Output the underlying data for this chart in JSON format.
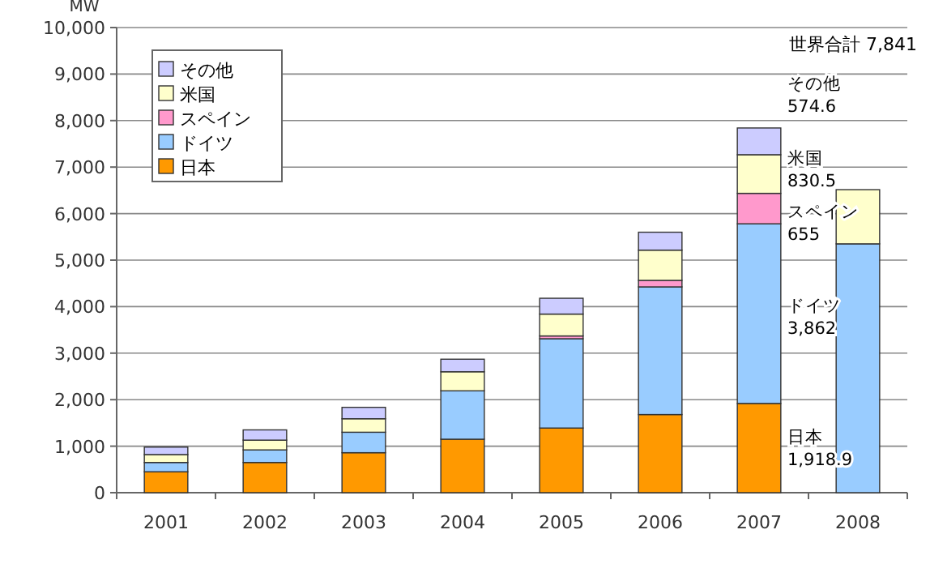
{
  "chart_data": {
    "type": "bar",
    "stacked": true,
    "ylabel": "MW",
    "categories": [
      "2001",
      "2002",
      "2003",
      "2004",
      "2005",
      "2006",
      "2007",
      "2008"
    ],
    "series": [
      {
        "name": "日本",
        "color": "#ff9900",
        "values": [
          450,
          650,
          860,
          1150,
          1390,
          1680,
          1918.9,
          null
        ]
      },
      {
        "name": "ドイツ",
        "color": "#99ccff",
        "values": [
          200,
          270,
          440,
          1040,
          1920,
          2745,
          3862,
          5350
        ]
      },
      {
        "name": "スペイン",
        "color": "#ff99cc",
        "values": [
          null,
          null,
          null,
          null,
          60,
          140,
          655,
          null
        ]
      },
      {
        "name": "米国",
        "color": "#ffffcc",
        "values": [
          170,
          210,
          290,
          410,
          470,
          650,
          830.5,
          1165
        ]
      },
      {
        "name": "その他",
        "color": "#ccccff",
        "values": [
          160,
          220,
          245,
          270,
          340,
          385,
          574.6,
          null
        ]
      }
    ],
    "ylim": [
      0,
      10000
    ],
    "yticks": [
      {
        "value": 0,
        "label": "0"
      },
      {
        "value": 1000,
        "label": "1,000"
      },
      {
        "value": 2000,
        "label": "2,000"
      },
      {
        "value": 3000,
        "label": "3,000"
      },
      {
        "value": 4000,
        "label": "4,000"
      },
      {
        "value": 5000,
        "label": "5,000"
      },
      {
        "value": 6000,
        "label": "6,000"
      },
      {
        "value": 7000,
        "label": "7,000"
      },
      {
        "value": 8000,
        "label": "8,000"
      },
      {
        "value": 9000,
        "label": "9,000"
      },
      {
        "value": 10000,
        "label": "10,000"
      }
    ],
    "grid": "y",
    "legend": "top left",
    "annotations": [
      "世界合計 7,841",
      "その他 574.6",
      "米国 830.5",
      "スペイン 655",
      "ドイツ 3,862",
      "日本 1,918.9"
    ]
  }
}
